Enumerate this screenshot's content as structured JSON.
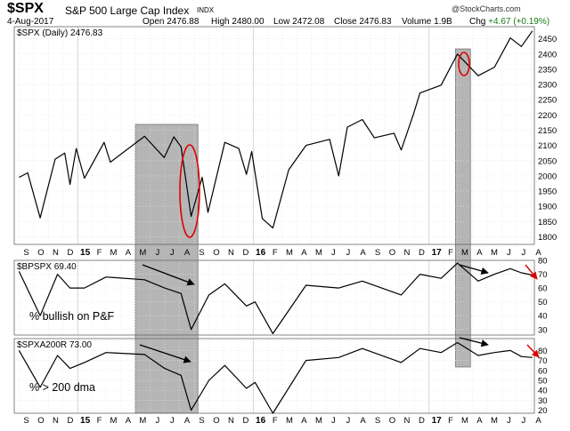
{
  "header": {
    "symbol": "$SPX",
    "name": "S&P 500 Large Cap Index",
    "exchange": "INDX",
    "credit": "@StockCharts.com",
    "date": "4-Aug-2017",
    "quote": {
      "open_label": "Open",
      "open": "2476.88",
      "high_label": "High",
      "high": "2480.00",
      "low_label": "Low",
      "low": "2472.08",
      "close_label": "Close",
      "close": "2476.83",
      "volume_label": "Volume",
      "volume": "1.9B",
      "chg_label": "Chg",
      "chg": "+4.67 (+0.19%)",
      "up_color": "#1a7a1a"
    }
  },
  "annotations": {
    "bullish_label": "% bullish on P&F",
    "dma_label": "% > 200 dma",
    "highlight_color": "#a8a8a8",
    "circle_color": "#e00000",
    "arrow_color": "#e00000"
  },
  "chart_data": {
    "type": "line",
    "x_axis": {
      "months": [
        "S",
        "O",
        "N",
        "D",
        "15",
        "F",
        "M",
        "A",
        "M",
        "J",
        "J",
        "A",
        "S",
        "O",
        "N",
        "D",
        "16",
        "F",
        "M",
        "A",
        "M",
        "J",
        "J",
        "A",
        "S",
        "O",
        "N",
        "D",
        "17",
        "F",
        "M",
        "A",
        "M",
        "J",
        "J",
        "A"
      ],
      "range": [
        "2014-09",
        "2017-08"
      ]
    },
    "panels": [
      {
        "id": "spx",
        "legend": "$SPX (Daily) 2476.83",
        "ylim": [
          1775,
          2490
        ],
        "yticks": [
          1800,
          1850,
          1900,
          1950,
          2000,
          2050,
          2100,
          2150,
          2200,
          2250,
          2300,
          2350,
          2400,
          2450
        ],
        "series": [
          {
            "x": [
              "2014-09-01",
              "2014-09-19",
              "2014-10-15",
              "2014-11-15",
              "2014-12-05",
              "2014-12-16",
              "2014-12-29",
              "2015-01-15",
              "2015-02-25",
              "2015-03-10",
              "2015-05-20",
              "2015-06-30",
              "2015-07-20",
              "2015-08-04",
              "2015-08-25",
              "2015-09-17",
              "2015-09-29",
              "2015-11-03",
              "2015-12-02",
              "2015-12-18",
              "2015-12-29",
              "2016-01-20",
              "2016-02-11",
              "2016-03-15",
              "2016-04-20",
              "2016-06-08",
              "2016-06-27",
              "2016-07-15",
              "2016-08-15",
              "2016-09-09",
              "2016-10-20",
              "2016-11-04",
              "2016-11-30",
              "2016-12-13",
              "2017-01-26",
              "2017-03-01",
              "2017-04-13",
              "2017-05-17",
              "2017-06-19",
              "2017-07-12",
              "2017-08-04"
            ],
            "y": [
              1995,
              2010,
              1862,
              2055,
              2075,
              1972,
              2090,
              1992,
              2110,
              2045,
              2130,
              2060,
              2128,
              2095,
              1867,
              1995,
              1880,
              2110,
              2090,
              2005,
              2080,
              1860,
              1829,
              2020,
              2100,
              2120,
              2000,
              2160,
              2185,
              2125,
              2140,
              2085,
              2205,
              2272,
              2298,
              2400,
              2329,
              2357,
              2453,
              2425,
              2476
            ]
          }
        ]
      },
      {
        "id": "bpspx",
        "legend": "$BPSPX 69.40",
        "ylim": [
          26,
          80
        ],
        "yticks": [
          30,
          40,
          50,
          60,
          70,
          80
        ],
        "series": [
          {
            "x": [
              "2014-09-01",
              "2014-10-15",
              "2014-11-20",
              "2014-12-16",
              "2015-01-15",
              "2015-03-01",
              "2015-05-20",
              "2015-07-01",
              "2015-08-04",
              "2015-08-25",
              "2015-10-01",
              "2015-11-03",
              "2015-12-18",
              "2016-01-05",
              "2016-02-11",
              "2016-04-20",
              "2016-06-27",
              "2016-08-15",
              "2016-11-04",
              "2016-12-13",
              "2017-01-26",
              "2017-03-01",
              "2017-04-13",
              "2017-05-17",
              "2017-06-19",
              "2017-07-12",
              "2017-08-04"
            ],
            "y": [
              72,
              40,
              70,
              60,
              60,
              68,
              66,
              60,
              56,
              30,
              55,
              63,
              47,
              50,
              27,
              62,
              60,
              65,
              55,
              70,
              67,
              78,
              65,
              70,
              74,
              71,
              69.4
            ]
          }
        ]
      },
      {
        "id": "spxa200r",
        "legend": "$SPXA200R 73.00",
        "ylim": [
          17,
          92
        ],
        "yticks": [
          20,
          30,
          40,
          50,
          60,
          70,
          80
        ],
        "series": [
          {
            "x": [
              "2014-09-01",
              "2014-10-15",
              "2014-11-20",
              "2014-12-16",
              "2015-01-15",
              "2015-03-01",
              "2015-05-20",
              "2015-07-01",
              "2015-08-04",
              "2015-08-25",
              "2015-10-01",
              "2015-11-03",
              "2015-12-18",
              "2016-01-05",
              "2016-02-11",
              "2016-04-20",
              "2016-06-27",
              "2016-08-15",
              "2016-11-04",
              "2016-12-13",
              "2017-01-26",
              "2017-03-01",
              "2017-04-13",
              "2017-05-17",
              "2017-06-19",
              "2017-07-12",
              "2017-08-04"
            ],
            "y": [
              80,
              43,
              75,
              62,
              68,
              78,
              76,
              62,
              55,
              20,
              50,
              65,
              42,
              48,
              17,
              70,
              73,
              82,
              68,
              82,
              78,
              88,
              75,
              78,
              80,
              74,
              73
            ]
          }
        ]
      }
    ],
    "shaded_ranges": [
      [
        "2015-05-01",
        "2015-09-08"
      ],
      [
        "2017-02-25",
        "2017-03-28"
      ]
    ]
  }
}
